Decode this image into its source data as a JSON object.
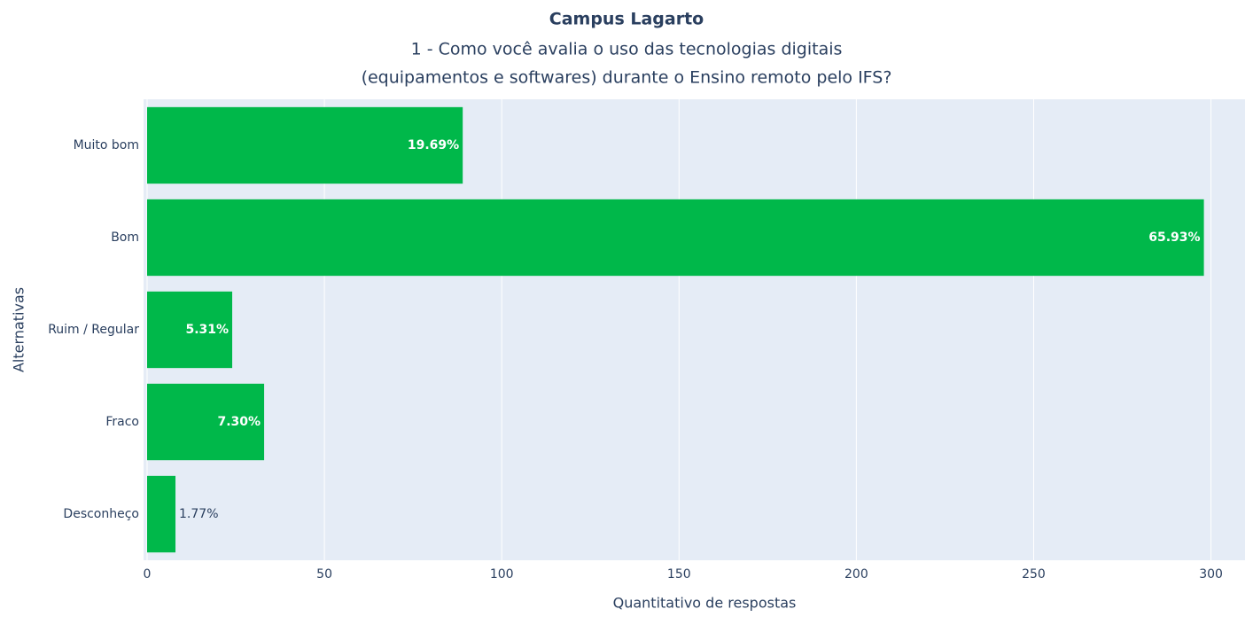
{
  "chart_data": {
    "type": "bar",
    "orientation": "horizontal",
    "title": "Campus Lagarto",
    "subtitle": [
      "1 - Como você avalia o uso das tecnologias digitais",
      "(equipamentos e softwares) durante o Ensino remoto pelo IFS?"
    ],
    "x_label": "Quantitativo de respostas",
    "y_label": "Alternativas",
    "categories": [
      "Muito bom",
      "Bom",
      "Ruim / Regular",
      "Fraco",
      "Desconheço"
    ],
    "values": [
      89,
      298,
      24,
      33,
      8
    ],
    "text_labels": [
      "19.69%",
      "65.93%",
      "5.31%",
      "7.30%",
      "1.77%"
    ],
    "color": "#00b84a",
    "xlim": [
      -1,
      309.6
    ],
    "xticks": [
      0,
      50,
      100,
      150,
      200,
      250,
      300
    ],
    "grid": true
  }
}
